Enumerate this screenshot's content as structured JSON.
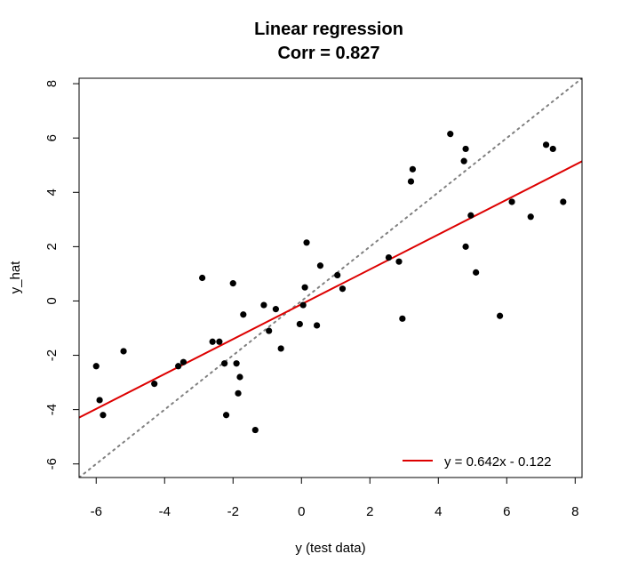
{
  "chart_data": {
    "type": "scatter",
    "title": "Linear regression",
    "subtitle": "Corr = 0.827",
    "xlabel": "y (test data)",
    "ylabel": "y_hat",
    "xlim": [
      -6.5,
      8.2
    ],
    "ylim": [
      -6.5,
      8.2
    ],
    "xticks": [
      "-6",
      "-4",
      "-2",
      "0",
      "2",
      "4",
      "6",
      "8"
    ],
    "yticks": [
      "-6",
      "-4",
      "-2",
      "0",
      "2",
      "4",
      "6",
      "8"
    ],
    "grid": false,
    "legend": {
      "position": "bottom-right",
      "label": "y = 0.642x - 0.122"
    },
    "regression": {
      "slope": 0.642,
      "intercept": -0.122,
      "color": "#dd0000"
    },
    "identity_line": {
      "slope": 1,
      "intercept": 0,
      "color": "#808080",
      "style": "dotted"
    },
    "point_color": "#000000",
    "points": [
      {
        "x": -6.0,
        "y": -2.4
      },
      {
        "x": -5.9,
        "y": -3.65
      },
      {
        "x": -5.8,
        "y": -4.2
      },
      {
        "x": -5.2,
        "y": -1.85
      },
      {
        "x": -4.3,
        "y": -3.05
      },
      {
        "x": -3.6,
        "y": -2.4
      },
      {
        "x": -3.45,
        "y": -2.25
      },
      {
        "x": -2.9,
        "y": 0.85
      },
      {
        "x": -2.6,
        "y": -1.5
      },
      {
        "x": -2.4,
        "y": -1.5
      },
      {
        "x": -2.25,
        "y": -2.3
      },
      {
        "x": -2.2,
        "y": -4.2
      },
      {
        "x": -2.0,
        "y": 0.65
      },
      {
        "x": -1.9,
        "y": -2.3
      },
      {
        "x": -1.85,
        "y": -3.4
      },
      {
        "x": -1.8,
        "y": -2.8
      },
      {
        "x": -1.7,
        "y": -0.5
      },
      {
        "x": -1.35,
        "y": -4.75
      },
      {
        "x": -1.1,
        "y": -0.15
      },
      {
        "x": -0.95,
        "y": -1.1
      },
      {
        "x": -0.75,
        "y": -0.3
      },
      {
        "x": -0.6,
        "y": -1.75
      },
      {
        "x": -0.05,
        "y": -0.85
      },
      {
        "x": 0.05,
        "y": -0.15
      },
      {
        "x": 0.1,
        "y": 0.5
      },
      {
        "x": 0.15,
        "y": 2.15
      },
      {
        "x": 0.45,
        "y": -0.9
      },
      {
        "x": 0.55,
        "y": 1.3
      },
      {
        "x": 1.05,
        "y": 0.95
      },
      {
        "x": 1.2,
        "y": 0.45
      },
      {
        "x": 2.55,
        "y": 1.6
      },
      {
        "x": 2.85,
        "y": 1.45
      },
      {
        "x": 2.95,
        "y": -0.65
      },
      {
        "x": 3.2,
        "y": 4.4
      },
      {
        "x": 3.25,
        "y": 4.85
      },
      {
        "x": 4.35,
        "y": 6.15
      },
      {
        "x": 4.75,
        "y": 5.15
      },
      {
        "x": 4.8,
        "y": 5.6
      },
      {
        "x": 4.8,
        "y": 2.0
      },
      {
        "x": 4.95,
        "y": 3.15
      },
      {
        "x": 5.1,
        "y": 1.05
      },
      {
        "x": 5.8,
        "y": -0.55
      },
      {
        "x": 6.15,
        "y": 3.65
      },
      {
        "x": 6.7,
        "y": 3.1
      },
      {
        "x": 7.15,
        "y": 5.75
      },
      {
        "x": 7.35,
        "y": 5.6
      },
      {
        "x": 7.65,
        "y": 3.65
      }
    ]
  }
}
